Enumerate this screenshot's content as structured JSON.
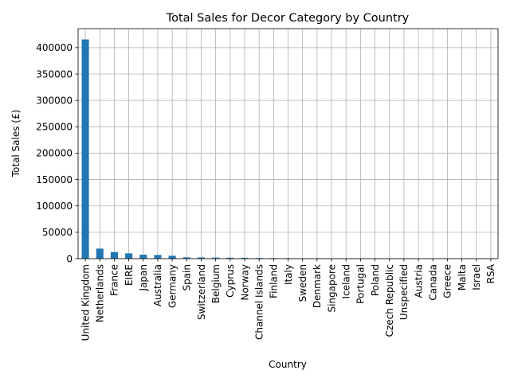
{
  "chart_data": {
    "type": "bar",
    "title": "Total Sales for Decor Category by Country",
    "xlabel": "Country",
    "ylabel": "Total Sales (£)",
    "categories": [
      "United Kingdom",
      "Netherlands",
      "France",
      "EIRE",
      "Japan",
      "Australia",
      "Germany",
      "Spain",
      "Switzerland",
      "Belgium",
      "Cyprus",
      "Norway",
      "Channel Islands",
      "Finland",
      "Italy",
      "Sweden",
      "Denmark",
      "Singapore",
      "Iceland",
      "Portugal",
      "Poland",
      "Czech Republic",
      "Unspecified",
      "Austria",
      "Canada",
      "Greece",
      "Malta",
      "Israel",
      "RSA"
    ],
    "values": [
      415500,
      19000,
      12500,
      10000,
      7500,
      7000,
      5500,
      2500,
      2300,
      2000,
      1800,
      1600,
      1200,
      1000,
      900,
      800,
      700,
      650,
      600,
      550,
      500,
      450,
      400,
      350,
      300,
      250,
      200,
      150,
      100
    ],
    "ylim": [
      0,
      436000
    ],
    "yticks": [
      0,
      50000,
      100000,
      150000,
      200000,
      250000,
      300000,
      350000,
      400000
    ],
    "grid": true,
    "bar_color": "#1f77b4"
  }
}
